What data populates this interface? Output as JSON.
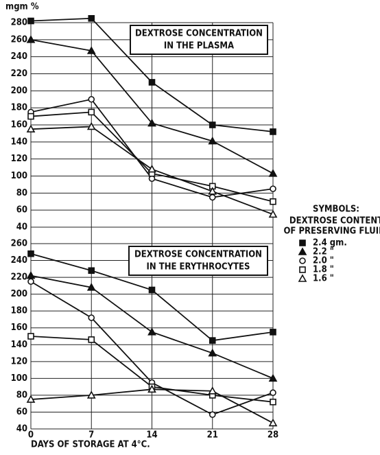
{
  "chart_data": [
    {
      "type": "line",
      "ylabel": "mgm %",
      "title": [
        "DEXTROSE CONCENTRATION",
        "IN THE PLASMA"
      ],
      "ylim": [
        40,
        280
      ],
      "yticks": [
        40,
        60,
        80,
        100,
        120,
        140,
        160,
        180,
        200,
        220,
        240,
        260,
        280
      ],
      "series": [
        {
          "values": [
            282,
            285,
            210,
            160,
            152
          ]
        },
        {
          "values": [
            260,
            247,
            162,
            141,
            103
          ]
        },
        {
          "values": [
            175,
            190,
            97,
            75,
            85
          ]
        },
        {
          "values": [
            170,
            175,
            103,
            88,
            70
          ]
        },
        {
          "values": [
            155,
            158,
            108,
            82,
            55
          ]
        }
      ],
      "grid": true
    },
    {
      "type": "line",
      "title": [
        "DEXTROSE CONCENTRATION",
        "IN THE ERYTHROCYTES"
      ],
      "x": [
        0,
        7,
        14,
        21,
        28
      ],
      "xlim": [
        0,
        28
      ],
      "xticks": [
        0,
        7,
        14,
        21,
        28
      ],
      "xlabel": "DAYS OF STORAGE AT 4°C.",
      "ylim": [
        40,
        260
      ],
      "yticks": [
        40,
        60,
        80,
        100,
        120,
        140,
        160,
        180,
        200,
        220,
        240,
        260
      ],
      "series": [
        {
          "values": [
            248,
            228,
            205,
            145,
            155
          ]
        },
        {
          "values": [
            222,
            208,
            155,
            130,
            100
          ]
        },
        {
          "values": [
            215,
            172,
            95,
            57,
            83
          ]
        },
        {
          "values": [
            150,
            146,
            90,
            80,
            72
          ]
        },
        {
          "values": [
            75,
            80,
            87,
            85,
            47
          ]
        }
      ],
      "grid": true
    }
  ],
  "legend": {
    "title": "SYMBOLS:",
    "subtitle": [
      "DEXTROSE CONTENT",
      "OF PRESERVING FLUID:"
    ],
    "entries": [
      {
        "name": "2.4 gm.",
        "marker": "filled-square"
      },
      {
        "name": "2.2 \"",
        "marker": "filled-triangle"
      },
      {
        "name": "2.0 \"",
        "marker": "open-circle"
      },
      {
        "name": "1.8 \"",
        "marker": "open-square"
      },
      {
        "name": "1.6 \"",
        "marker": "open-triangle"
      }
    ]
  }
}
